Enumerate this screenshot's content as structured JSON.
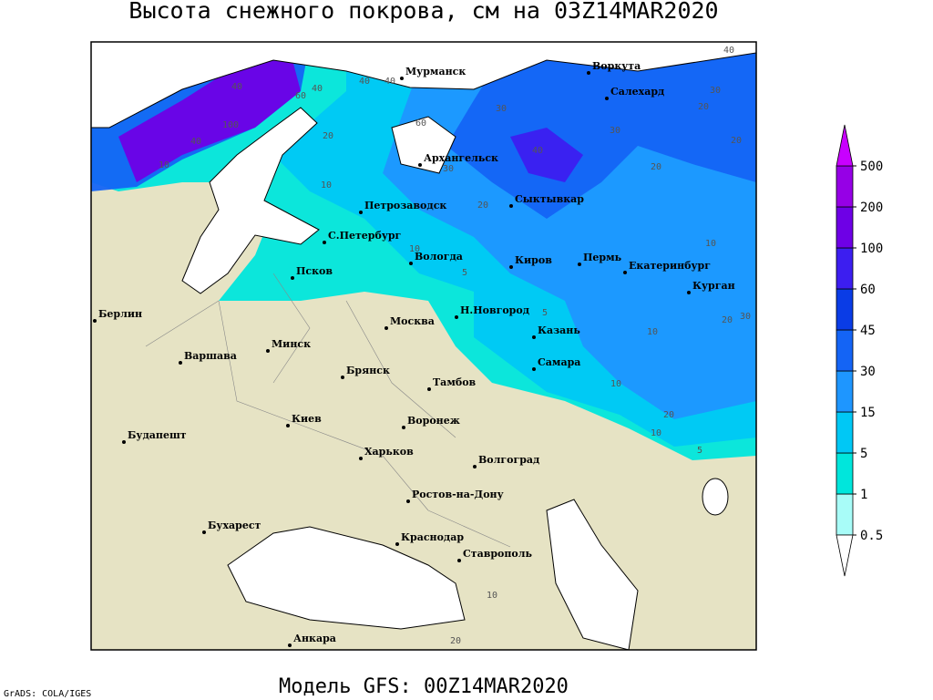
{
  "header": {
    "title": "Высота снежного покрова, см на 03Z14MAR2020"
  },
  "footer": {
    "model": "Модель GFS: 00Z14MAR2020",
    "credit": "GrADS: COLA/IGES"
  },
  "legend": {
    "levels": [
      0.5,
      1,
      5,
      15,
      30,
      45,
      60,
      100,
      200,
      500
    ],
    "colors": [
      "#ffffff",
      "#a8fcf8",
      "#00e6dc",
      "#00c8f5",
      "#1e96ff",
      "#1464f5",
      "#0a3ce6",
      "#3c1ef0",
      "#6e00e6",
      "#9600e6",
      "#c800ff"
    ]
  },
  "map": {
    "cities": [
      "Мурманск",
      "Воркута",
      "Салехард",
      "Архангельск",
      "Петрозаводск",
      "С.Петербург",
      "Сыктывкар",
      "Вологда",
      "Псков",
      "Киров",
      "Пермь",
      "Екатеринбург",
      "Курган",
      "Берлин",
      "Н.Новгород",
      "Москва",
      "Минск",
      "Казань",
      "Варшава",
      "Брянск",
      "Самара",
      "Тамбов",
      "Киев",
      "Воронеж",
      "Будапешт",
      "Харьков",
      "Волгоград",
      "Ростов-на-Дону",
      "Бухарест",
      "Краснодар",
      "Ставрополь",
      "Анкара"
    ],
    "contour_labels": [
      40,
      40,
      40,
      60,
      40,
      30,
      100,
      40,
      60,
      20,
      10,
      30,
      40,
      20,
      30,
      20,
      30,
      20,
      10,
      10,
      5,
      20,
      30,
      10,
      10,
      20,
      10,
      5,
      10,
      10,
      20,
      5,
      40,
      20
    ]
  }
}
